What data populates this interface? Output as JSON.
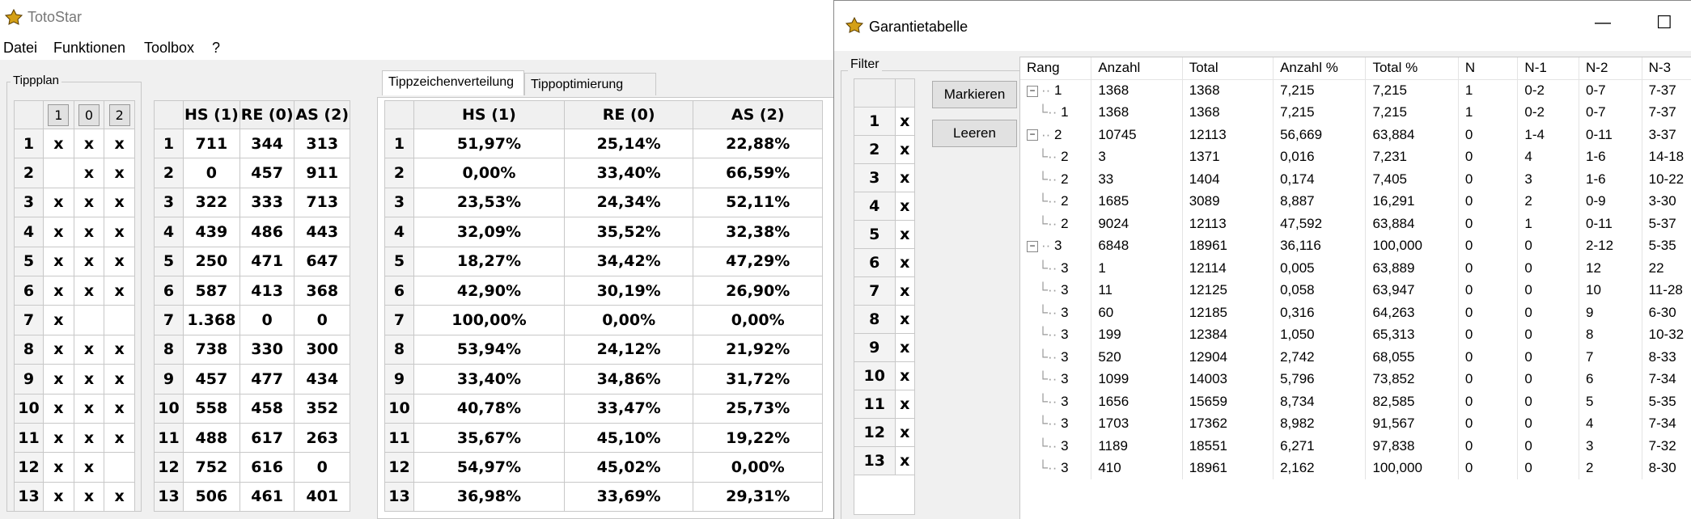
{
  "app": {
    "title": "TotoStar"
  },
  "menu": [
    "Datei",
    "Funktionen",
    "Toolbox",
    "?"
  ],
  "tippplan": {
    "label": "Tippplan",
    "headers": [
      "1",
      "0",
      "2"
    ],
    "rows": [
      [
        "1",
        "x",
        "x",
        "x"
      ],
      [
        "2",
        "",
        "x",
        "x"
      ],
      [
        "3",
        "x",
        "x",
        "x"
      ],
      [
        "4",
        "x",
        "x",
        "x"
      ],
      [
        "5",
        "x",
        "x",
        "x"
      ],
      [
        "6",
        "x",
        "x",
        "x"
      ],
      [
        "7",
        "x",
        "",
        ""
      ],
      [
        "8",
        "x",
        "x",
        "x"
      ],
      [
        "9",
        "x",
        "x",
        "x"
      ],
      [
        "10",
        "x",
        "x",
        "x"
      ],
      [
        "11",
        "x",
        "x",
        "x"
      ],
      [
        "12",
        "x",
        "x",
        ""
      ],
      [
        "13",
        "x",
        "x",
        "x"
      ]
    ]
  },
  "counts": {
    "headers": [
      "HS (1)",
      "RE (0)",
      "AS (2)"
    ],
    "rows": [
      [
        "1",
        "711",
        "344",
        "313"
      ],
      [
        "2",
        "0",
        "457",
        "911"
      ],
      [
        "3",
        "322",
        "333",
        "713"
      ],
      [
        "4",
        "439",
        "486",
        "443"
      ],
      [
        "5",
        "250",
        "471",
        "647"
      ],
      [
        "6",
        "587",
        "413",
        "368"
      ],
      [
        "7",
        "1.368",
        "0",
        "0"
      ],
      [
        "8",
        "738",
        "330",
        "300"
      ],
      [
        "9",
        "457",
        "477",
        "434"
      ],
      [
        "10",
        "558",
        "458",
        "352"
      ],
      [
        "11",
        "488",
        "617",
        "263"
      ],
      [
        "12",
        "752",
        "616",
        "0"
      ],
      [
        "13",
        "506",
        "461",
        "401"
      ]
    ]
  },
  "tabs": [
    "Tippzeichenverteilung",
    "Tippoptimierung"
  ],
  "percent": {
    "headers": [
      "HS (1)",
      "RE (0)",
      "AS (2)"
    ],
    "rows": [
      [
        "1",
        "51,97%",
        "25,14%",
        "22,88%"
      ],
      [
        "2",
        "0,00%",
        "33,40%",
        "66,59%"
      ],
      [
        "3",
        "23,53%",
        "24,34%",
        "52,11%"
      ],
      [
        "4",
        "32,09%",
        "35,52%",
        "32,38%"
      ],
      [
        "5",
        "18,27%",
        "34,42%",
        "47,29%"
      ],
      [
        "6",
        "42,90%",
        "30,19%",
        "26,90%"
      ],
      [
        "7",
        "100,00%",
        "0,00%",
        "0,00%"
      ],
      [
        "8",
        "53,94%",
        "24,12%",
        "21,92%"
      ],
      [
        "9",
        "33,40%",
        "34,86%",
        "31,72%"
      ],
      [
        "10",
        "40,78%",
        "33,47%",
        "25,73%"
      ],
      [
        "11",
        "35,67%",
        "45,10%",
        "19,22%"
      ],
      [
        "12",
        "54,97%",
        "45,02%",
        "0,00%"
      ],
      [
        "13",
        "36,98%",
        "33,69%",
        "29,31%"
      ]
    ]
  },
  "garantie": {
    "title": "Garantietabelle",
    "minimize": "—",
    "maximize": "☐",
    "filter_label": "Filter",
    "filter_rows": [
      [
        "1",
        "x"
      ],
      [
        "2",
        "x"
      ],
      [
        "3",
        "x"
      ],
      [
        "4",
        "x"
      ],
      [
        "5",
        "x"
      ],
      [
        "6",
        "x"
      ],
      [
        "7",
        "x"
      ],
      [
        "8",
        "x"
      ],
      [
        "9",
        "x"
      ],
      [
        "10",
        "x"
      ],
      [
        "11",
        "x"
      ],
      [
        "12",
        "x"
      ],
      [
        "13",
        "x"
      ]
    ],
    "btn_mark": "Markieren",
    "btn_clear": "Leeren",
    "headers": [
      "Rang",
      "Anzahl",
      "Total",
      "Anzahl %",
      "Total %",
      "N",
      "N-1",
      "N-2",
      "N-3"
    ],
    "rows": [
      {
        "level": 0,
        "exp": "−",
        "rang": "1",
        "c": [
          "1368",
          "1368",
          "7,215",
          "7,215",
          "1",
          "0-2",
          "0-7",
          "7-37"
        ]
      },
      {
        "level": 1,
        "rang": "1",
        "c": [
          "1368",
          "1368",
          "7,215",
          "7,215",
          "1",
          "0-2",
          "0-7",
          "7-37"
        ]
      },
      {
        "level": 0,
        "exp": "−",
        "rang": "2",
        "c": [
          "10745",
          "12113",
          "56,669",
          "63,884",
          "0",
          "1-4",
          "0-11",
          "3-37"
        ]
      },
      {
        "level": 1,
        "rang": "2",
        "c": [
          "3",
          "1371",
          "0,016",
          "7,231",
          "0",
          "4",
          "1-6",
          "14-18"
        ]
      },
      {
        "level": 1,
        "rang": "2",
        "c": [
          "33",
          "1404",
          "0,174",
          "7,405",
          "0",
          "3",
          "1-6",
          "10-22"
        ]
      },
      {
        "level": 1,
        "rang": "2",
        "c": [
          "1685",
          "3089",
          "8,887",
          "16,291",
          "0",
          "2",
          "0-9",
          "3-30"
        ]
      },
      {
        "level": 1,
        "rang": "2",
        "c": [
          "9024",
          "12113",
          "47,592",
          "63,884",
          "0",
          "1",
          "0-11",
          "5-37"
        ]
      },
      {
        "level": 0,
        "exp": "−",
        "rang": "3",
        "c": [
          "6848",
          "18961",
          "36,116",
          "100,000",
          "0",
          "0",
          "2-12",
          "5-35"
        ]
      },
      {
        "level": 1,
        "rang": "3",
        "c": [
          "1",
          "12114",
          "0,005",
          "63,889",
          "0",
          "0",
          "12",
          "22"
        ]
      },
      {
        "level": 1,
        "rang": "3",
        "c": [
          "11",
          "12125",
          "0,058",
          "63,947",
          "0",
          "0",
          "10",
          "11-28"
        ]
      },
      {
        "level": 1,
        "rang": "3",
        "c": [
          "60",
          "12185",
          "0,316",
          "64,263",
          "0",
          "0",
          "9",
          "6-30"
        ]
      },
      {
        "level": 1,
        "rang": "3",
        "c": [
          "199",
          "12384",
          "1,050",
          "65,313",
          "0",
          "0",
          "8",
          "10-32"
        ]
      },
      {
        "level": 1,
        "rang": "3",
        "c": [
          "520",
          "12904",
          "2,742",
          "68,055",
          "0",
          "0",
          "7",
          "8-33"
        ]
      },
      {
        "level": 1,
        "rang": "3",
        "c": [
          "1099",
          "14003",
          "5,796",
          "73,852",
          "0",
          "0",
          "6",
          "7-34"
        ]
      },
      {
        "level": 1,
        "rang": "3",
        "c": [
          "1656",
          "15659",
          "8,734",
          "82,585",
          "0",
          "0",
          "5",
          "5-35"
        ]
      },
      {
        "level": 1,
        "rang": "3",
        "c": [
          "1703",
          "17362",
          "8,982",
          "91,567",
          "0",
          "0",
          "4",
          "7-34"
        ]
      },
      {
        "level": 1,
        "rang": "3",
        "c": [
          "1189",
          "18551",
          "6,271",
          "97,838",
          "0",
          "0",
          "3",
          "7-32"
        ]
      },
      {
        "level": 1,
        "rang": "3",
        "c": [
          "410",
          "18961",
          "2,162",
          "100,000",
          "0",
          "0",
          "2",
          "8-30"
        ]
      }
    ]
  }
}
